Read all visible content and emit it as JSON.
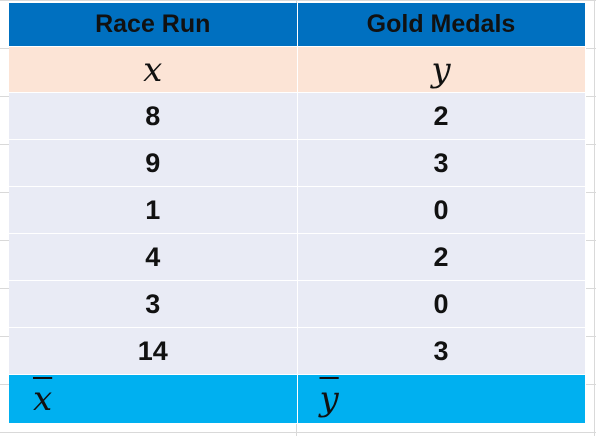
{
  "table": {
    "headers": [
      "Race Run",
      "Gold Medals"
    ],
    "variables": [
      "x",
      "y"
    ],
    "rows": [
      [
        "8",
        "2"
      ],
      [
        "9",
        "3"
      ],
      [
        "1",
        "0"
      ],
      [
        "4",
        "2"
      ],
      [
        "3",
        "0"
      ],
      [
        "14",
        "3"
      ]
    ],
    "means": [
      "x",
      "y"
    ]
  },
  "colors": {
    "header_bg": "#0070c0",
    "variable_row_bg": "#fce4d6",
    "data_row_bg": "#e9ebf5",
    "mean_row_bg": "#00b0f0"
  }
}
